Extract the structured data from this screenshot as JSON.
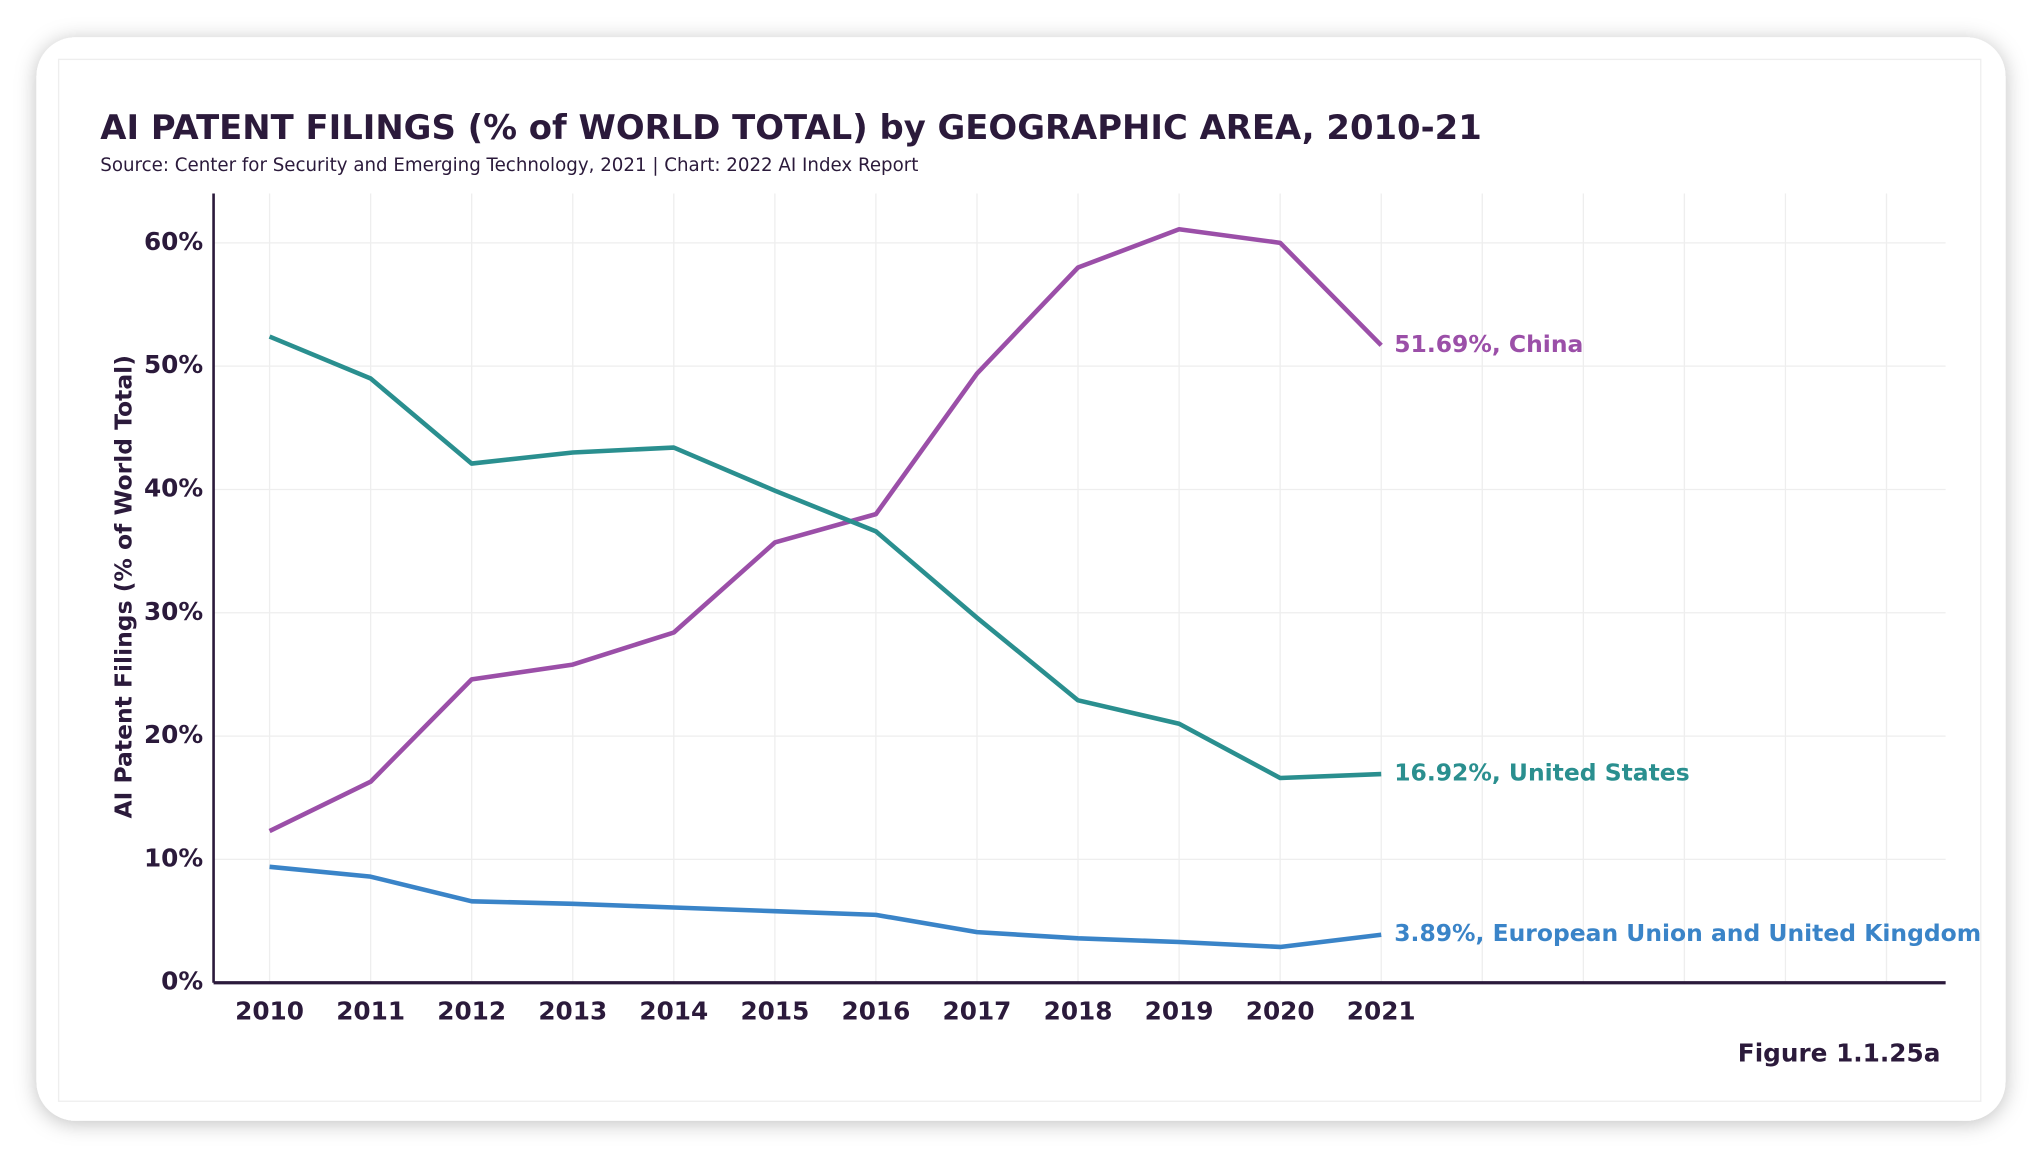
{
  "chart_data": {
    "type": "line",
    "title": "AI PATENT FILINGS (% of WORLD TOTAL) by GEOGRAPHIC AREA, 2010-21",
    "subtitle": "Source: Center for Security and Emerging Technology, 2021 | Chart: 2022 AI Index Report",
    "y_label": "AI Patent Filings (% of World Total)",
    "figure_label": "Figure 1.1.25a",
    "categories": [
      "2010",
      "2011",
      "2012",
      "2013",
      "2014",
      "2015",
      "2016",
      "2017",
      "2018",
      "2019",
      "2020",
      "2021"
    ],
    "series": [
      {
        "name": "China",
        "color": "#9b4fa8",
        "values": [
          12.3,
          16.3,
          24.6,
          25.8,
          28.4,
          35.7,
          38.0,
          49.4,
          58.0,
          61.1,
          60.0,
          51.69
        ],
        "value_labels": [
          null,
          null,
          null,
          null,
          null,
          null,
          null,
          null,
          null,
          null,
          null,
          "51.69%, China"
        ]
      },
      {
        "name": "United States",
        "color": "#2a8f8f",
        "values": [
          52.4,
          49.0,
          42.1,
          43.0,
          43.4,
          39.9,
          36.6,
          29.6,
          22.9,
          21.0,
          16.6,
          16.92
        ],
        "value_labels": [
          null,
          null,
          null,
          null,
          null,
          null,
          null,
          null,
          null,
          null,
          null,
          "16.92%, United States"
        ]
      },
      {
        "name": "European Union and United Kingdom",
        "color": "#3a84c8",
        "values": [
          9.4,
          8.6,
          6.6,
          6.4,
          6.1,
          5.8,
          5.5,
          4.1,
          3.6,
          3.3,
          2.9,
          3.89
        ],
        "value_labels": [
          null,
          null,
          null,
          null,
          null,
          null,
          null,
          null,
          null,
          null,
          null,
          "3.89%, European Union and United Kingdom"
        ]
      }
    ],
    "ylim": [
      0,
      64
    ],
    "yticks": [
      {
        "value": 0,
        "label": "0%"
      },
      {
        "value": 10,
        "label": "10%"
      },
      {
        "value": 20,
        "label": "20%"
      },
      {
        "value": 30,
        "label": "30%"
      },
      {
        "value": 40,
        "label": "40%"
      },
      {
        "value": 50,
        "label": "50%"
      },
      {
        "value": 60,
        "label": "60%"
      }
    ],
    "grid": true
  }
}
